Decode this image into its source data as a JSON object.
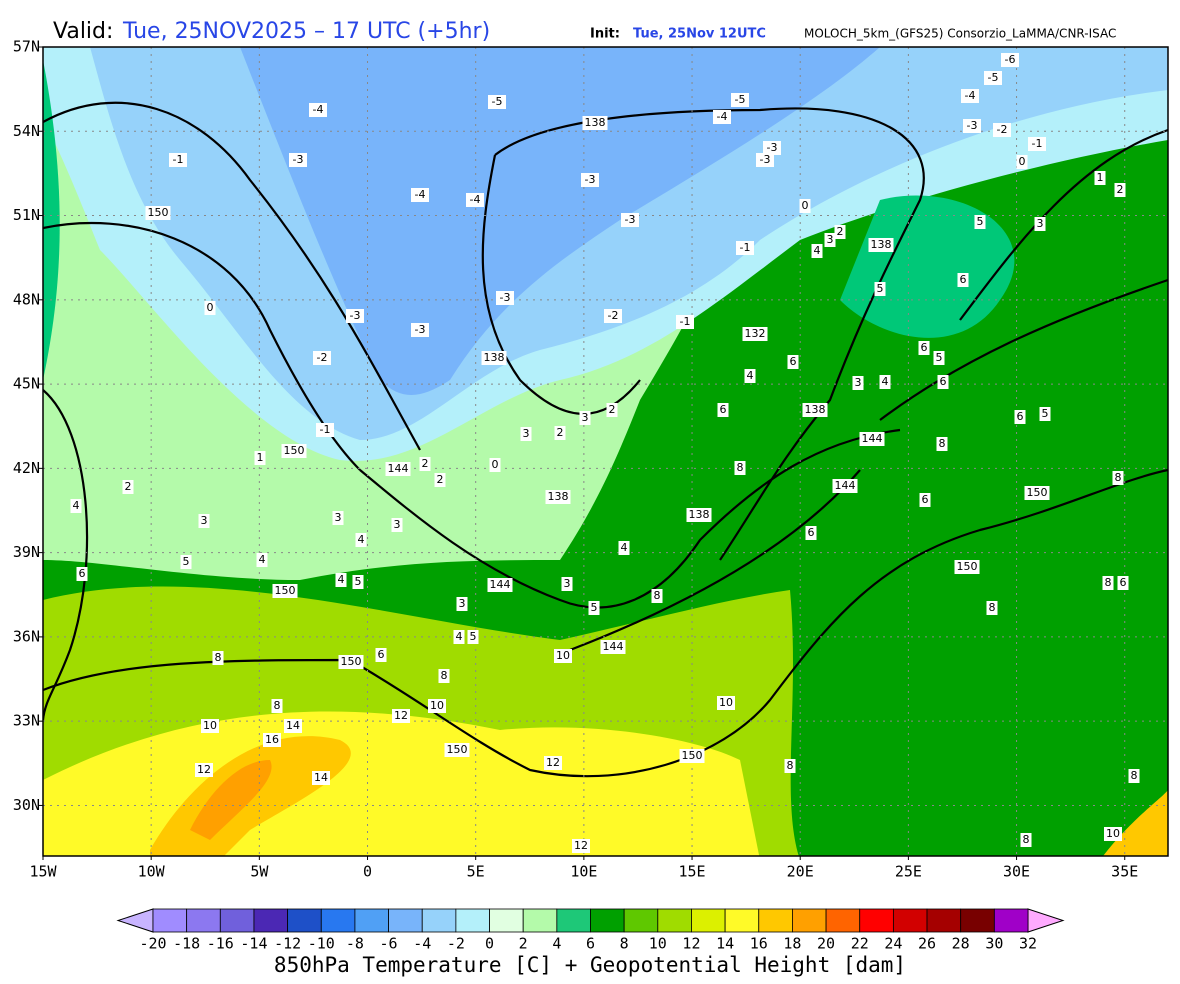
{
  "header": {
    "valid_label": "Valid:",
    "valid_time": "Tue, 25NOV2025 – 17 UTC (+5hr)",
    "init_label": "Init:",
    "init_time": "Tue, 25Nov 12UTC",
    "model": "MOLOCH_5km_(GFS25) Consorzio_LaMMA/CNR-ISAC"
  },
  "map": {
    "lon_range": [
      -15,
      37
    ],
    "lat_range": [
      28.2,
      57
    ],
    "lat_ticks": [
      {
        "value": 57,
        "label": "57N"
      },
      {
        "value": 54,
        "label": "54N"
      },
      {
        "value": 51,
        "label": "51N"
      },
      {
        "value": 48,
        "label": "48N"
      },
      {
        "value": 45,
        "label": "45N"
      },
      {
        "value": 42,
        "label": "42N"
      },
      {
        "value": 39,
        "label": "39N"
      },
      {
        "value": 36,
        "label": "36N"
      },
      {
        "value": 33,
        "label": "33N"
      },
      {
        "value": 30,
        "label": "30N"
      }
    ],
    "lon_ticks": [
      {
        "value": -15,
        "label": "15W"
      },
      {
        "value": -10,
        "label": "10W"
      },
      {
        "value": -5,
        "label": "5W"
      },
      {
        "value": 0,
        "label": "0"
      },
      {
        "value": 5,
        "label": "5E"
      },
      {
        "value": 10,
        "label": "10E"
      },
      {
        "value": 15,
        "label": "15E"
      },
      {
        "value": 20,
        "label": "20E"
      },
      {
        "value": 25,
        "label": "25E"
      },
      {
        "value": 30,
        "label": "30E"
      },
      {
        "value": 35,
        "label": "35E"
      }
    ],
    "grid": true,
    "temperature_labels": [
      -5,
      -4,
      -5,
      -4,
      -3,
      -1,
      -3,
      -4,
      -4,
      -3,
      -3,
      -3,
      -1,
      -3,
      -3,
      -3,
      -2,
      -2,
      -1,
      -6,
      -5,
      -4,
      -3,
      -2,
      -1,
      0,
      2,
      3,
      5,
      6,
      6,
      6,
      5,
      6,
      6,
      5,
      8,
      8,
      8,
      6,
      6,
      8,
      8,
      8,
      6,
      8,
      8,
      8,
      10,
      6,
      10,
      10,
      12,
      10,
      14,
      16,
      12,
      14,
      12,
      8,
      8,
      8,
      10,
      12,
      6,
      5,
      4,
      5,
      4,
      4,
      5,
      5,
      3,
      3,
      4,
      3,
      4,
      3,
      3,
      4,
      2,
      1,
      -1,
      2,
      2,
      0,
      3,
      2,
      2,
      3,
      4,
      6,
      4,
      3,
      5,
      1,
      0,
      0,
      3,
      2,
      4
    ],
    "height_labels": [
      138,
      138,
      132,
      138,
      138,
      144,
      144,
      144,
      138,
      138,
      150,
      150,
      144,
      150,
      150,
      150,
      150,
      144,
      150,
      150
    ]
  },
  "colorbar": {
    "labels": [
      -20,
      -18,
      -16,
      -14,
      -12,
      -10,
      -8,
      -6,
      -4,
      -2,
      0,
      2,
      4,
      6,
      8,
      10,
      12,
      14,
      16,
      18,
      20,
      22,
      24,
      26,
      28,
      30,
      32
    ],
    "colors": [
      "#a08cff",
      "#8c78f0",
      "#7060dc",
      "#4b28b4",
      "#1e50c8",
      "#2878f0",
      "#50a0f5",
      "#78b4fa",
      "#96d2fa",
      "#b4f0fa",
      "#e1ffe1",
      "#b4faaa",
      "#1ec878",
      "#00a000",
      "#5fc800",
      "#a0dc00",
      "#dcf000",
      "#fffa28",
      "#ffc800",
      "#ffa000",
      "#ff6400",
      "#ff0000",
      "#d20000",
      "#a50000",
      "#780000",
      "#a000c8",
      "#ff00ff"
    ],
    "under_color": "#c8b4ff",
    "over_color": "#ffaaff"
  },
  "footer": {
    "title": "850hPa Temperature [C] + Geopotential Height [dam]"
  }
}
